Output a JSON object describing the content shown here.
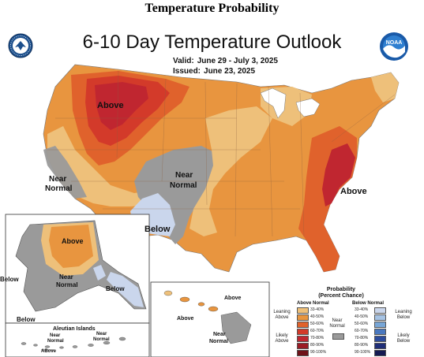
{
  "page_heading": "Temperature Probability",
  "map": {
    "title": "6-10 Day Temperature Outlook",
    "valid_label": "Valid:",
    "valid_value": "June 29 - July 3, 2025",
    "issued_label": "Issued:",
    "issued_value": "June 23, 2025",
    "logos": [
      "department-of-commerce-seal",
      "noaa-logo"
    ]
  },
  "region_labels": {
    "conus_above_northwest": "Above",
    "conus_near_normal_west_1": "Near",
    "conus_near_normal_west_2": "Normal",
    "conus_near_normal_central_1": "Near",
    "conus_near_normal_central_2": "Normal",
    "conus_below": "Below",
    "conus_above_southeast": "Above",
    "alaska_above": "Above",
    "alaska_near_normal_1": "Near",
    "alaska_near_normal_2": "Normal",
    "alaska_below_panhandle": "Below",
    "alaska_below_west": "Below",
    "alaska_below_south": "Below",
    "aleutian_title": "Aleutian Islands",
    "aleutian_near_normal_1_a": "Near",
    "aleutian_near_normal_1_b": "Normal",
    "aleutian_near_normal_2_a": "Near",
    "aleutian_near_normal_2_b": "Normal",
    "aleutian_above": "ABove",
    "hawaii_above_1": "Above",
    "hawaii_above_2": "Above",
    "hawaii_near_normal_1": "Near",
    "hawaii_near_normal_2": "Normal"
  },
  "legend": {
    "title_line1": "Probability",
    "title_line2": "(Percent Chance)",
    "above_head": "Above Normal",
    "below_head": "Below Normal",
    "leaning_above": [
      "Leaning",
      "Above"
    ],
    "likely_above": [
      "Likely",
      "Above"
    ],
    "near_normal": [
      "Near",
      "Normal"
    ],
    "leaning_below": [
      "Leaning",
      "Below"
    ],
    "likely_below": [
      "Likely",
      "Below"
    ],
    "above_ranges": [
      "33-40%",
      "40-50%",
      "50-60%",
      "60-70%",
      "70-80%",
      "80-90%",
      "90-100%"
    ],
    "below_ranges": [
      "33-40%",
      "40-50%",
      "50-60%",
      "60-70%",
      "70-80%",
      "80-90%",
      "90-100%"
    ],
    "above_colors": [
      "#eec07a",
      "#e8953f",
      "#e0622c",
      "#d33a2a",
      "#c02630",
      "#9b1c25",
      "#6e1218"
    ],
    "below_colors": [
      "#cad6ec",
      "#a6c3e4",
      "#78a6d6",
      "#4a78bf",
      "#2c4b9c",
      "#1f2e78",
      "#141a52"
    ],
    "near_color": "#9a9a9a"
  }
}
